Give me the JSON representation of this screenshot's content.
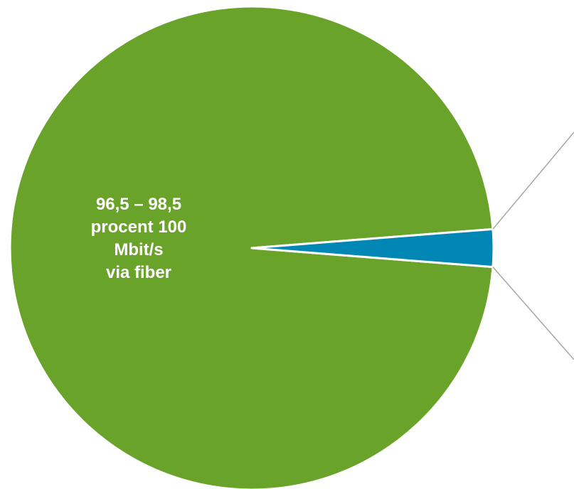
{
  "chart_data": {
    "type": "pie",
    "slices": [
      {
        "label_lines": [
          "96,5 – 98,5",
          "procent 100",
          "Mbit/s",
          "via fiber"
        ],
        "value": 97.5,
        "color": "#6aa329"
      },
      {
        "label_lines": [],
        "value": 2.5,
        "color": "#0287b5"
      }
    ],
    "slice_border_color": "#ffffff",
    "leader_line_color": "#a6a6a6"
  }
}
